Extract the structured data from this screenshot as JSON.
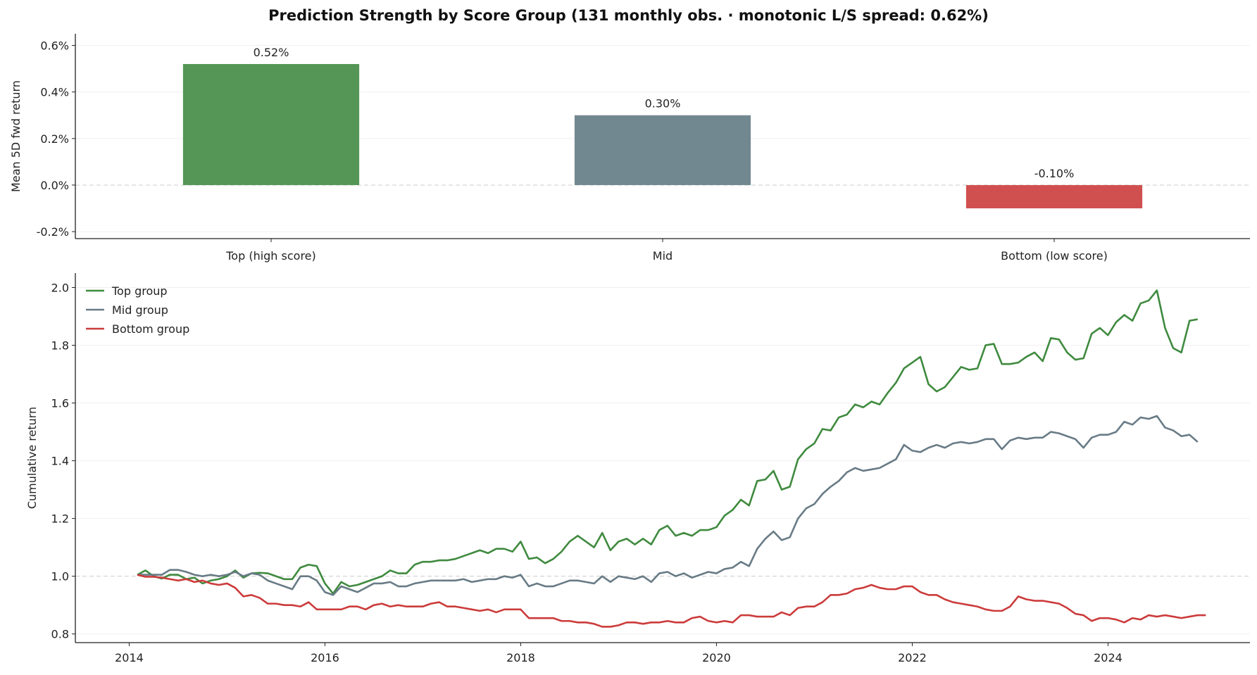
{
  "title": "Prediction Strength by Score Group  (131 monthly obs.  ·  monotonic   L/S spread: 0.62%)",
  "colors": {
    "top": "#559555",
    "mid": "#728890",
    "bottom": "#d05050",
    "top_line": "#3f8a3f",
    "mid_line": "#687b86",
    "bottom_line": "#cc3b3b"
  },
  "chart_data": [
    {
      "type": "bar",
      "categories": [
        "Top (high score)",
        "Mid",
        "Bottom (low score)"
      ],
      "values": [
        0.52,
        0.3,
        -0.1
      ],
      "value_labels": [
        "0.52%",
        "0.30%",
        "-0.10%"
      ],
      "ylabel": "Mean 5D fwd return",
      "ylim": [
        -0.23,
        0.65
      ],
      "yticks": [
        -0.2,
        0.0,
        0.2,
        0.4,
        0.6
      ],
      "ytick_labels": [
        "-0.2%",
        "0.0%",
        "0.2%",
        "0.4%",
        "0.6%"
      ],
      "grid": true
    },
    {
      "type": "line",
      "ylabel": "Cumulative return",
      "xlim": [
        2013.45,
        2025.45
      ],
      "ylim": [
        0.77,
        2.05
      ],
      "xticks": [
        2014,
        2016,
        2018,
        2020,
        2022,
        2024
      ],
      "xtick_labels": [
        "2014",
        "2016",
        "2018",
        "2020",
        "2022",
        "2024"
      ],
      "yticks": [
        0.8,
        1.0,
        1.2,
        1.4,
        1.6,
        1.8,
        2.0
      ],
      "ytick_labels": [
        "0.8",
        "1.0",
        "1.2",
        "1.4",
        "1.6",
        "1.8",
        "2.0"
      ],
      "legend": "upper-left",
      "grid": true,
      "x_start": 2014.083,
      "x_step": 0.08333,
      "series": [
        {
          "name": "Top group",
          "color_key": "top_line",
          "values": [
            1.005,
            1.02,
            1.0,
            0.992,
            1.005,
            1.005,
            0.99,
            0.995,
            0.975,
            0.985,
            0.99,
            1.0,
            1.02,
            0.995,
            1.01,
            1.012,
            1.01,
            1.0,
            0.99,
            0.99,
            1.03,
            1.04,
            1.035,
            0.975,
            0.94,
            0.98,
            0.965,
            0.97,
            0.98,
            0.99,
            1.0,
            1.02,
            1.01,
            1.01,
            1.04,
            1.05,
            1.05,
            1.055,
            1.055,
            1.06,
            1.07,
            1.08,
            1.09,
            1.08,
            1.095,
            1.095,
            1.085,
            1.12,
            1.06,
            1.065,
            1.045,
            1.06,
            1.085,
            1.12,
            1.14,
            1.12,
            1.1,
            1.15,
            1.09,
            1.12,
            1.13,
            1.11,
            1.13,
            1.11,
            1.16,
            1.175,
            1.14,
            1.15,
            1.14,
            1.16,
            1.16,
            1.17,
            1.21,
            1.23,
            1.265,
            1.245,
            1.33,
            1.335,
            1.365,
            1.3,
            1.31,
            1.405,
            1.44,
            1.46,
            1.51,
            1.505,
            1.55,
            1.56,
            1.595,
            1.585,
            1.605,
            1.595,
            1.635,
            1.67,
            1.72,
            1.74,
            1.76,
            1.665,
            1.64,
            1.655,
            1.69,
            1.725,
            1.715,
            1.72,
            1.8,
            1.805,
            1.735,
            1.735,
            1.74,
            1.76,
            1.775,
            1.745,
            1.825,
            1.82,
            1.775,
            1.75,
            1.755,
            1.84,
            1.86,
            1.835,
            1.88,
            1.905,
            1.885,
            1.945,
            1.955,
            1.99,
            1.86,
            1.79,
            1.775,
            1.885,
            1.89
          ]
        },
        {
          "name": "Mid group",
          "color_key": "mid_line",
          "values": [
            1.005,
            1.005,
            1.005,
            1.005,
            1.022,
            1.022,
            1.015,
            1.005,
            1.0,
            1.005,
            1.0,
            1.005,
            1.015,
            1.0,
            1.01,
            1.005,
            0.985,
            0.975,
            0.965,
            0.955,
            1.0,
            1.0,
            0.985,
            0.945,
            0.935,
            0.965,
            0.955,
            0.945,
            0.96,
            0.975,
            0.975,
            0.98,
            0.965,
            0.965,
            0.975,
            0.98,
            0.985,
            0.985,
            0.985,
            0.985,
            0.99,
            0.98,
            0.985,
            0.99,
            0.99,
            1.0,
            0.995,
            1.005,
            0.965,
            0.975,
            0.965,
            0.965,
            0.975,
            0.985,
            0.985,
            0.98,
            0.975,
            1.0,
            0.98,
            1.0,
            0.995,
            0.99,
            1.0,
            0.98,
            1.01,
            1.015,
            1.0,
            1.01,
            0.995,
            1.005,
            1.015,
            1.01,
            1.025,
            1.03,
            1.05,
            1.035,
            1.095,
            1.13,
            1.155,
            1.125,
            1.135,
            1.2,
            1.235,
            1.25,
            1.285,
            1.31,
            1.33,
            1.36,
            1.375,
            1.365,
            1.37,
            1.375,
            1.39,
            1.405,
            1.455,
            1.435,
            1.43,
            1.445,
            1.455,
            1.445,
            1.46,
            1.465,
            1.46,
            1.465,
            1.475,
            1.475,
            1.44,
            1.47,
            1.48,
            1.475,
            1.48,
            1.48,
            1.5,
            1.495,
            1.485,
            1.475,
            1.445,
            1.48,
            1.49,
            1.49,
            1.5,
            1.535,
            1.525,
            1.55,
            1.545,
            1.555,
            1.515,
            1.505,
            1.485,
            1.49,
            1.465
          ]
        },
        {
          "name": "Bottom group",
          "color_key": "bottom_line",
          "values": [
            1.005,
            0.998,
            0.998,
            0.995,
            0.99,
            0.985,
            0.99,
            0.98,
            0.985,
            0.975,
            0.97,
            0.975,
            0.96,
            0.93,
            0.935,
            0.925,
            0.905,
            0.905,
            0.9,
            0.9,
            0.895,
            0.91,
            0.885,
            0.885,
            0.885,
            0.885,
            0.895,
            0.895,
            0.885,
            0.9,
            0.905,
            0.895,
            0.9,
            0.895,
            0.895,
            0.895,
            0.905,
            0.91,
            0.895,
            0.895,
            0.89,
            0.885,
            0.88,
            0.885,
            0.875,
            0.885,
            0.885,
            0.885,
            0.855,
            0.855,
            0.855,
            0.855,
            0.845,
            0.845,
            0.84,
            0.84,
            0.835,
            0.825,
            0.825,
            0.83,
            0.84,
            0.84,
            0.835,
            0.84,
            0.84,
            0.845,
            0.84,
            0.84,
            0.855,
            0.86,
            0.845,
            0.84,
            0.845,
            0.84,
            0.865,
            0.865,
            0.86,
            0.86,
            0.86,
            0.875,
            0.865,
            0.89,
            0.895,
            0.895,
            0.91,
            0.935,
            0.935,
            0.94,
            0.955,
            0.96,
            0.97,
            0.96,
            0.955,
            0.955,
            0.965,
            0.965,
            0.945,
            0.935,
            0.935,
            0.92,
            0.91,
            0.905,
            0.9,
            0.895,
            0.885,
            0.88,
            0.88,
            0.895,
            0.93,
            0.92,
            0.915,
            0.915,
            0.91,
            0.905,
            0.89,
            0.87,
            0.865,
            0.845,
            0.855,
            0.855,
            0.85,
            0.84,
            0.855,
            0.85,
            0.865,
            0.86,
            0.865,
            0.86,
            0.855,
            0.86,
            0.865,
            0.865
          ]
        }
      ]
    }
  ]
}
